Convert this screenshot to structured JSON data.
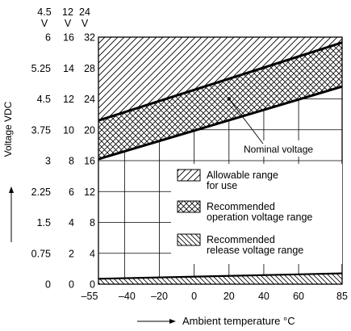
{
  "chart_data": {
    "type": "area",
    "title": "",
    "ylabel": "Voltage VDC",
    "xlabel": "Ambient temperature °C",
    "xlim": [
      -55,
      85
    ],
    "ylim": [
      0,
      32
    ],
    "x_ticks": [
      -55,
      -40,
      -20,
      0,
      20,
      40,
      60,
      85
    ],
    "x_tick_labels": [
      "–55",
      "–40",
      "–20",
      "0",
      "20",
      "40",
      "60",
      "85"
    ],
    "grid_x": [
      -55,
      -40,
      -20,
      0,
      20,
      40,
      60,
      85
    ],
    "y_tick_columns": [
      {
        "unit": "V",
        "header": "4.5",
        "labels": [
          "0",
          "0.75",
          "1.5",
          "2.25",
          "3",
          "3.75",
          "4.5",
          "5.25",
          "6"
        ]
      },
      {
        "unit": "V",
        "header": "12",
        "labels": [
          "0",
          "2",
          "4",
          "6",
          "8",
          "10",
          "12",
          "14",
          "16"
        ]
      },
      {
        "unit": "V",
        "header": "24",
        "labels": [
          "0",
          "4",
          "8",
          "12",
          "16",
          "20",
          "24",
          "28",
          "32"
        ]
      }
    ],
    "y_tick_values": [
      0,
      4,
      8,
      12,
      16,
      20,
      24,
      28,
      32
    ],
    "series": [
      {
        "name": "Allowable range for use",
        "pattern": "diagonal-hatch",
        "lower": [
          [
            -55,
            21.2
          ],
          [
            85,
            31.3
          ]
        ],
        "upper": [
          [
            -55,
            32
          ],
          [
            85,
            32
          ]
        ]
      },
      {
        "name": "Recommended operation voltage range",
        "pattern": "cross-hatch",
        "lower": [
          [
            -55,
            16.2
          ],
          [
            85,
            25.6
          ]
        ],
        "upper": [
          [
            -55,
            21.2
          ],
          [
            85,
            31.3
          ]
        ]
      },
      {
        "name": "Recommended release voltage range",
        "pattern": "reverse-hatch",
        "lower": [
          [
            -55,
            0
          ],
          [
            85,
            0
          ]
        ],
        "upper": [
          [
            -55,
            0.7
          ],
          [
            85,
            1.4
          ]
        ]
      }
    ],
    "legend": {
      "placement": "center-right",
      "items": [
        {
          "label": [
            "Allowable range",
            "for use"
          ],
          "pattern": "diagonal-hatch"
        },
        {
          "label": [
            "Recommended",
            "operation voltage range"
          ],
          "pattern": "cross-hatch"
        },
        {
          "label": [
            "Recommended",
            "release voltage range"
          ],
          "pattern": "reverse-hatch"
        }
      ]
    },
    "annotations": [
      {
        "text": "Nominal voltage",
        "points_to": [
          20,
          24
        ]
      }
    ]
  }
}
